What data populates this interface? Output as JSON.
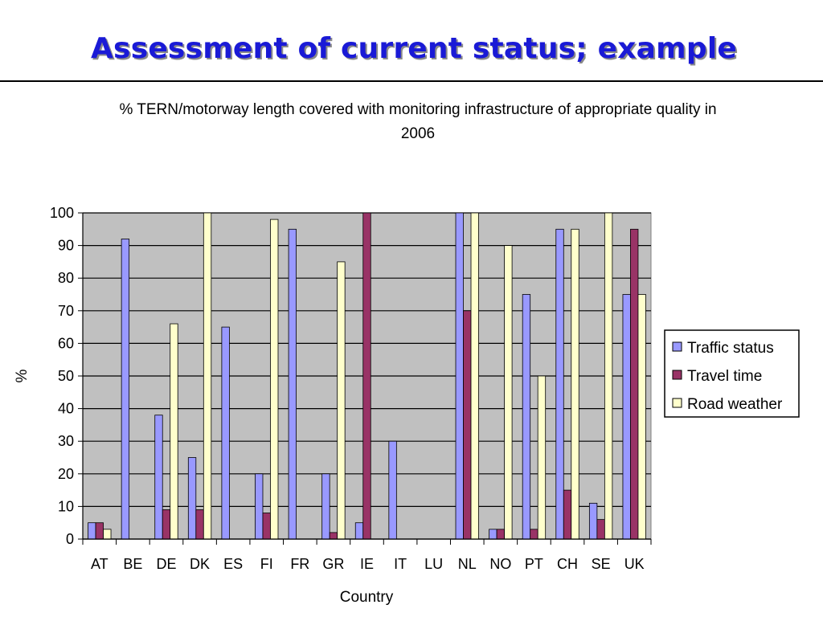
{
  "slide": {
    "title": "Assessment of current status; example"
  },
  "chart_data": {
    "type": "bar",
    "title_lines": [
      "% TERN/motorway length covered with monitoring infrastructure of appropriate quality in",
      "2006"
    ],
    "xlabel": "Country",
    "ylabel": "%",
    "ylim": [
      0,
      100
    ],
    "yticks": [
      0,
      10,
      20,
      30,
      40,
      50,
      60,
      70,
      80,
      90,
      100
    ],
    "grid": true,
    "legend_position": "right",
    "categories": [
      "AT",
      "BE",
      "DE",
      "DK",
      "ES",
      "FI",
      "FR",
      "GR",
      "IE",
      "IT",
      "LU",
      "NL",
      "NO",
      "PT",
      "CH",
      "SE",
      "UK"
    ],
    "series": [
      {
        "name": "Traffic status",
        "color": "#9999ff",
        "values": [
          5,
          92,
          38,
          25,
          65,
          20,
          95,
          20,
          5,
          30,
          0,
          100,
          3,
          75,
          95,
          11,
          75
        ]
      },
      {
        "name": "Travel time",
        "color": "#993366",
        "values": [
          5,
          0,
          9,
          9,
          0,
          8,
          0,
          2,
          100,
          0,
          0,
          70,
          3,
          3,
          15,
          6,
          95
        ]
      },
      {
        "name": "Road weather",
        "color": "#ffffcc",
        "values": [
          3,
          0,
          66,
          100,
          0,
          98,
          0,
          85,
          0,
          0,
          0,
          100,
          90,
          50,
          95,
          100,
          75
        ]
      }
    ],
    "plot_background": "#c0c0c0"
  }
}
